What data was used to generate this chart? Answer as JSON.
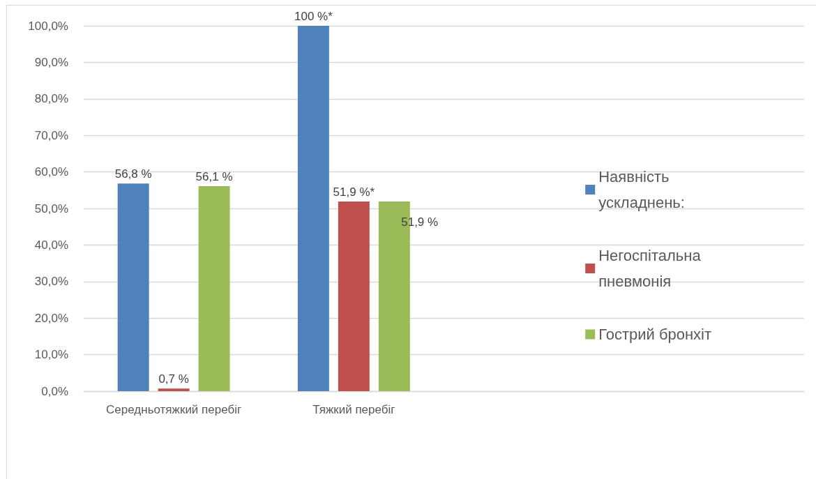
{
  "chart_data": {
    "type": "bar",
    "categories": [
      "Середньотяжкий перебіг",
      "Тяжкий перебіг",
      null,
      null
    ],
    "series": [
      {
        "name": "Наявність ускладнень:",
        "color": "#4f81bd",
        "values": [
          56.8,
          100,
          null,
          null
        ],
        "value_labels": [
          "56,8 %",
          "100 %*",
          null,
          null
        ]
      },
      {
        "name": "Негоспітальна пневмонія",
        "color": "#c0504d",
        "values": [
          0.7,
          51.9,
          null,
          null
        ],
        "value_labels": [
          "0,7 %",
          "51,9 %*",
          null,
          null
        ]
      },
      {
        "name": "Гострий бронхіт",
        "color": "#9bbb59",
        "values": [
          56.1,
          51.9,
          null,
          null
        ],
        "value_labels": [
          "56,1 %",
          "51,9 %",
          null,
          null
        ]
      }
    ],
    "ylim": [
      0,
      100
    ],
    "yticks": [
      {
        "value": 0,
        "label": "0,0%"
      },
      {
        "value": 10,
        "label": "10,0%"
      },
      {
        "value": 20,
        "label": "20,0%"
      },
      {
        "value": 30,
        "label": "30,0%"
      },
      {
        "value": 40,
        "label": "40,0%"
      },
      {
        "value": 50,
        "label": "50,0%"
      },
      {
        "value": 60,
        "label": "60,0%"
      },
      {
        "value": 70,
        "label": "70,0%"
      },
      {
        "value": 80,
        "label": "80,0%"
      },
      {
        "value": 90,
        "label": "90,0%"
      },
      {
        "value": 100,
        "label": "100,0%"
      }
    ],
    "grid": "y",
    "legend": "right"
  }
}
